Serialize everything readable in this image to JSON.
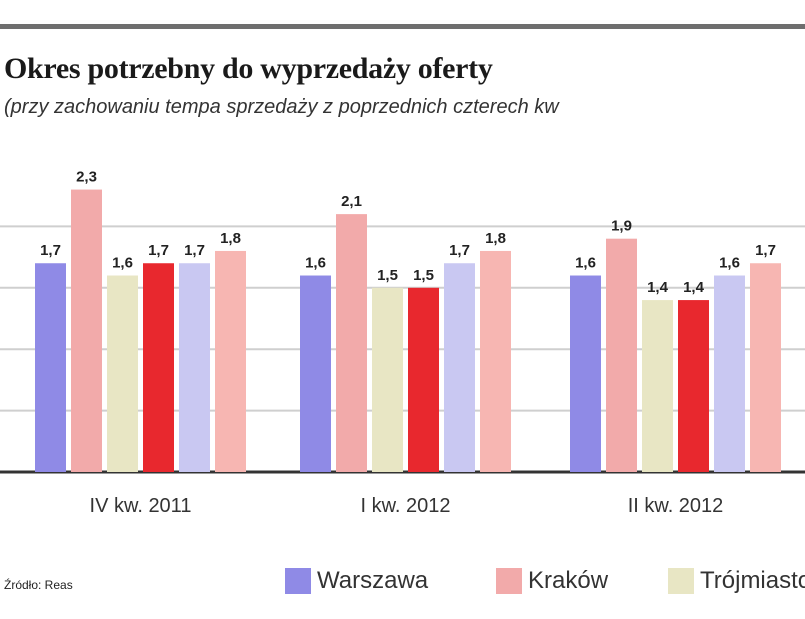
{
  "title": "Okres potrzebny do wyprzedaży oferty",
  "subtitle": "(przy zachowaniu tempa sprzedaży z poprzednich czterech kw",
  "source": "Źródło: Reas",
  "colors": {
    "Warszawa": "#8f8ae6",
    "Kraków": "#f2aaaa",
    "Trójmiasto": "#e8e6c4",
    "series4": "#e8282e",
    "series5": "#c9c8f2",
    "series6": "#f7b6b2",
    "grid": "#cfcfcf",
    "axis": "#333333"
  },
  "legend": [
    {
      "name": "Warszawa",
      "color": "#8f8ae6"
    },
    {
      "name": "Kraków",
      "color": "#f2aaaa"
    },
    {
      "name": "Trójmiasto",
      "color": "#e8e6c4"
    }
  ],
  "chart_data": {
    "type": "bar",
    "categories": [
      "IV kw. 2011",
      "I kw. 2012",
      "II kw. 2012"
    ],
    "ylim": [
      0,
      2.5
    ],
    "grid": true,
    "legend_position": "bottom",
    "series": [
      {
        "name": "Warszawa",
        "values": [
          1.7,
          1.6,
          1.6
        ]
      },
      {
        "values": [
          2.3,
          2.1,
          1.9
        ]
      },
      {
        "values": [
          1.6,
          1.5,
          1.4
        ]
      },
      {
        "values": [
          1.7,
          1.5,
          1.4
        ]
      },
      {
        "values": [
          1.7,
          1.7,
          1.6
        ]
      },
      {
        "values": [
          1.8,
          1.8,
          1.7
        ]
      }
    ],
    "value_labels": [
      [
        "1,7",
        "2,3",
        "1,6",
        "1,7",
        "1,7",
        "1,8"
      ],
      [
        "1,6",
        "2,1",
        "1,5",
        "1,5",
        "1,7",
        "1,8"
      ],
      [
        "1,6",
        "1,9",
        "1,4",
        "1,4",
        "1,6",
        "1,7"
      ]
    ]
  }
}
